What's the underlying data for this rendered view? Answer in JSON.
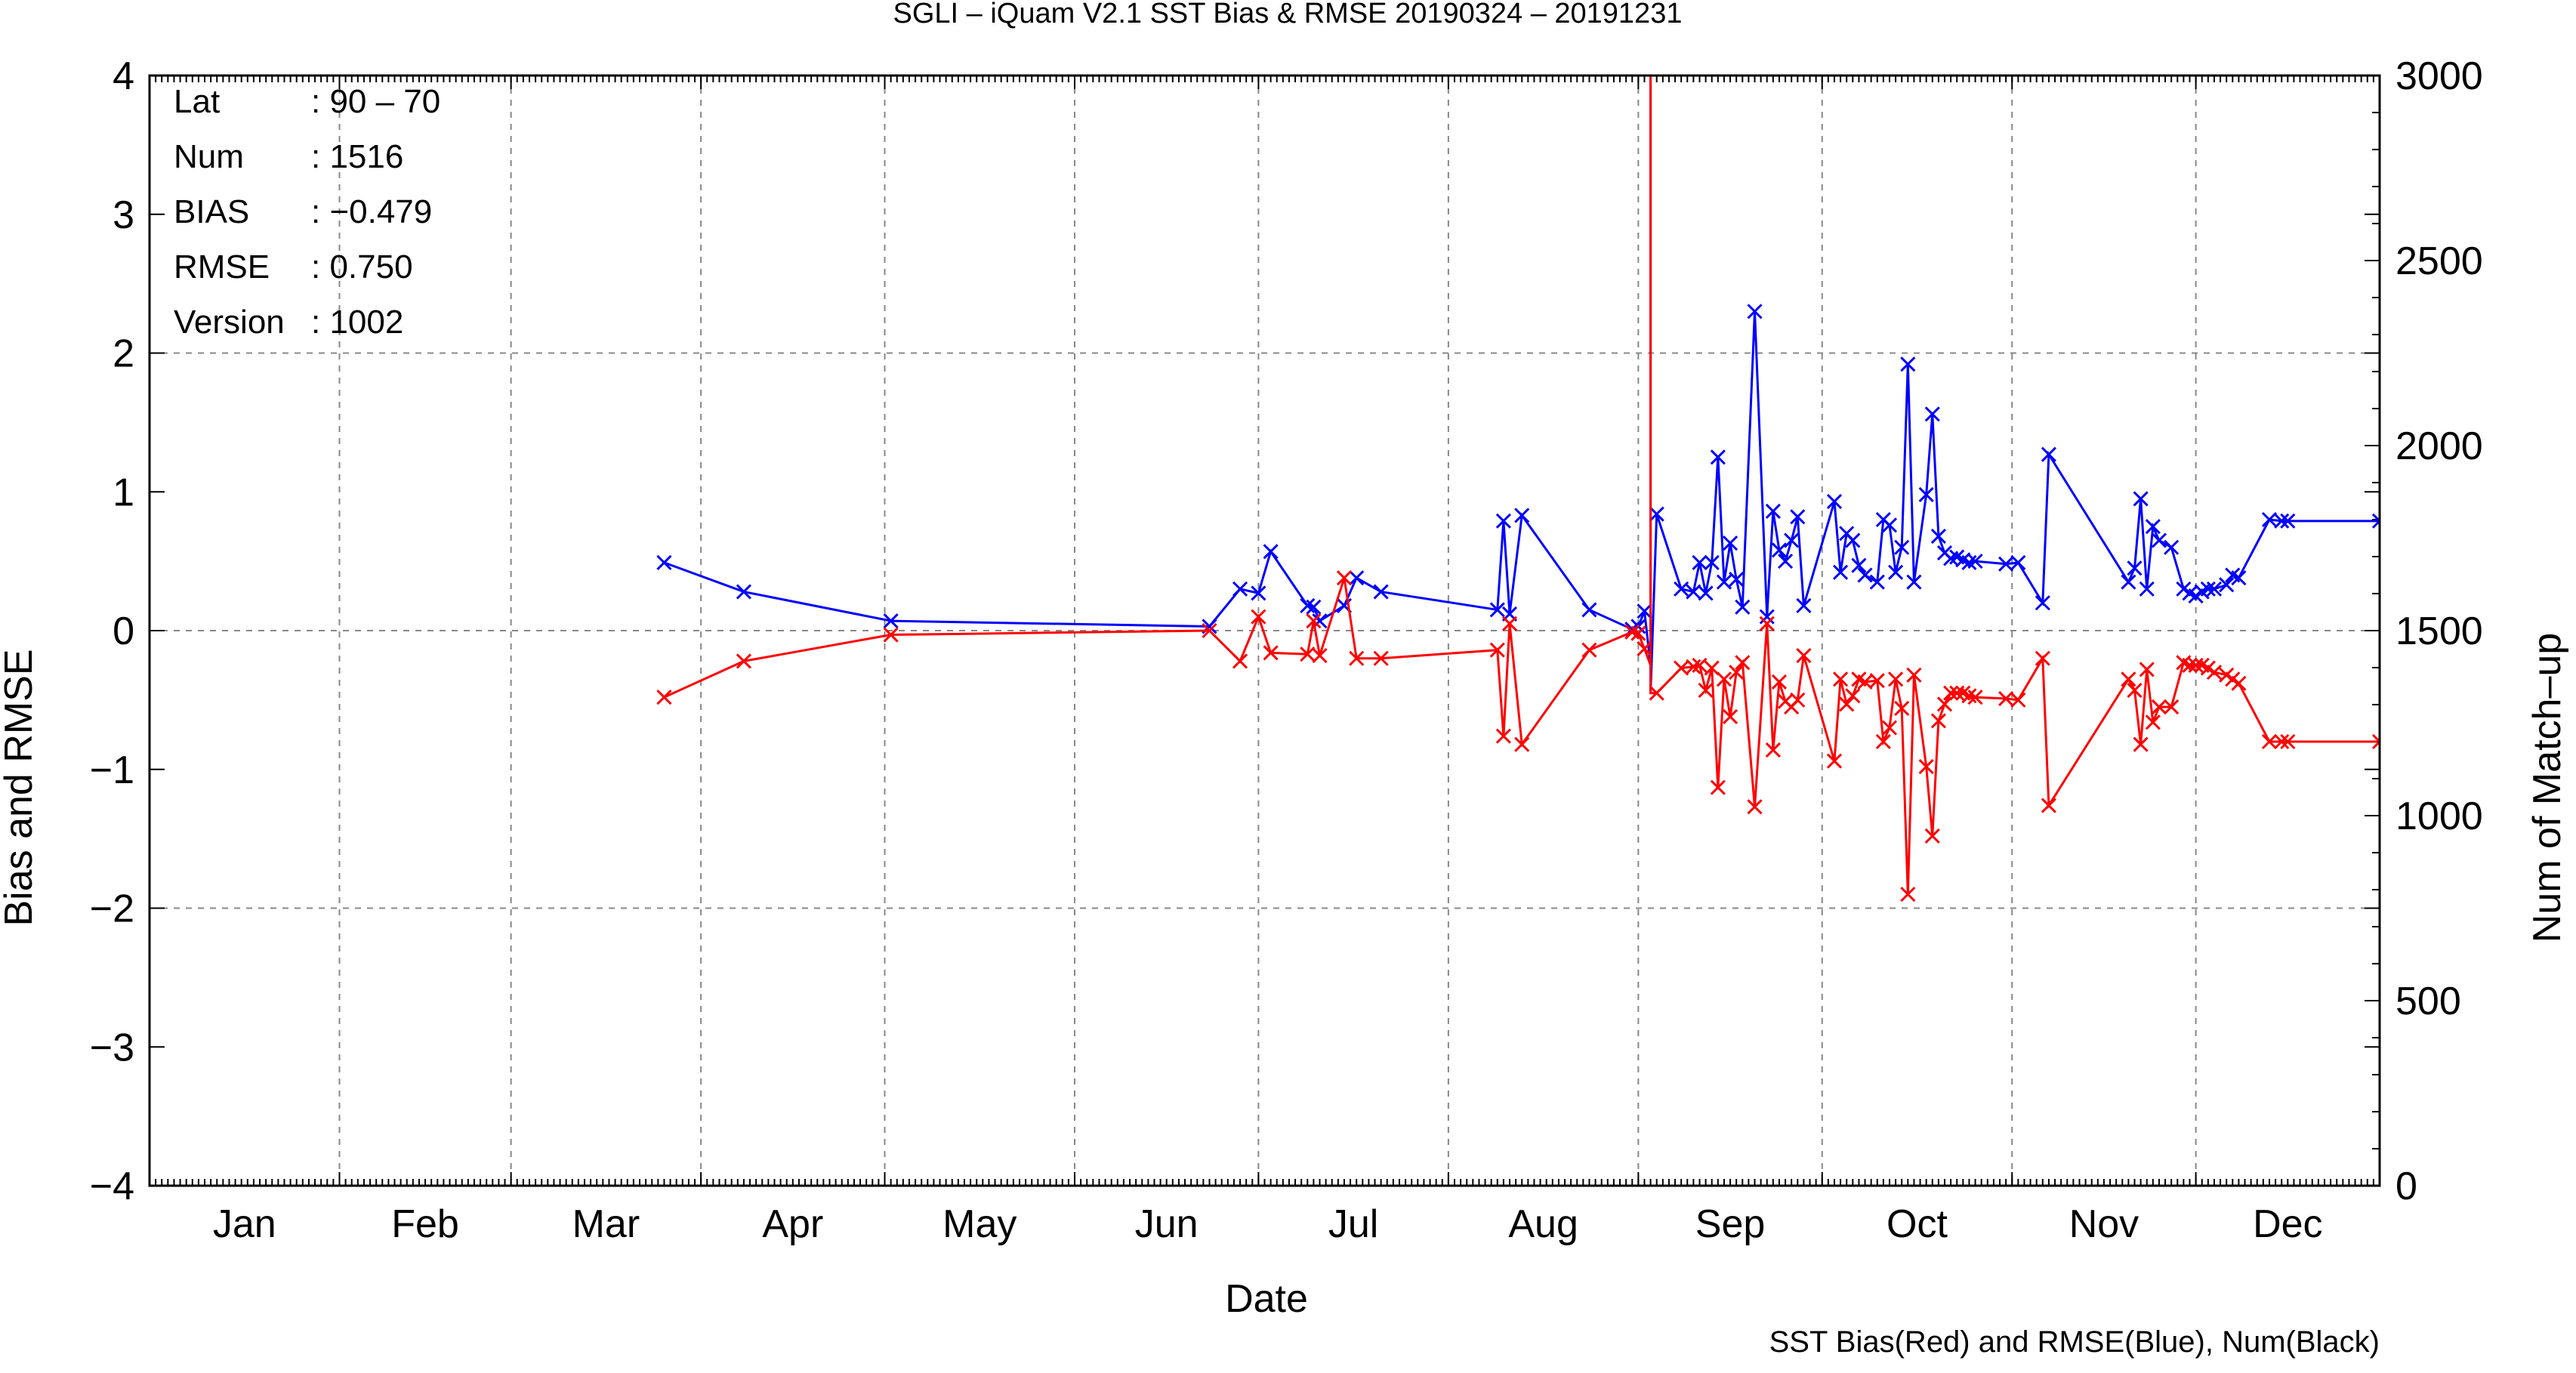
{
  "chart_data": {
    "type": "line",
    "title": "SGLI – iQuam V2.1 SST Bias & RMSE 20190324 – 20191231",
    "xlabel": "Date",
    "ylabel": "Bias and RMSE",
    "y2label": "Num of Match–up",
    "note": "SST Bias(Red) and RMSE(Blue), Num(Black)",
    "months": [
      "Jan",
      "Feb",
      "Mar",
      "Apr",
      "May",
      "Jun",
      "Jul",
      "Aug",
      "Sep",
      "Oct",
      "Nov",
      "Dec"
    ],
    "xlim": [
      "2019-01-01",
      "2019-12-31"
    ],
    "ylim": [
      -4,
      4
    ],
    "y2lim": [
      0,
      3000
    ],
    "yticks": [
      "4",
      "3",
      "2",
      "1",
      "0",
      "−1",
      "−2",
      "−3",
      "−4"
    ],
    "y2ticks": [
      "3000",
      "2500",
      "2000",
      "1500",
      "1000",
      "500",
      "0"
    ],
    "grid": true,
    "colors": {
      "bias": "#ff0000",
      "rmse": "#0000ff",
      "num": "#000000"
    },
    "stats": [
      {
        "key": "Lat",
        "value": ": 90 – 70"
      },
      {
        "key": "Num",
        "value": ": 1516"
      },
      {
        "key": "BIAS",
        "value": ": −0.479"
      },
      {
        "key": "RMSE",
        "value": ": 0.750"
      },
      {
        "key": "Version",
        "value": ": 1002"
      }
    ],
    "spike": {
      "date": "2019-09-03",
      "values": [
        -0.25,
        4.0,
        -0.45
      ]
    },
    "series": [
      {
        "key": "rmse",
        "dates": [
          "2019-03-26",
          "2019-04-08",
          "2019-05-02",
          "2019-06-23",
          "2019-06-28",
          "2019-07-01",
          "2019-07-03",
          "2019-07-09",
          "2019-07-10",
          "2019-07-11",
          "2019-07-15",
          "2019-07-17",
          "2019-07-21",
          "2019-08-09",
          "2019-08-10",
          "2019-08-11",
          "2019-08-13",
          "2019-08-24",
          "2019-08-31",
          "2019-09-01",
          "2019-09-02",
          "2019-09-04",
          "2019-09-08",
          "2019-09-10",
          "2019-09-11",
          "2019-09-12",
          "2019-09-13",
          "2019-09-14",
          "2019-09-15",
          "2019-09-16",
          "2019-09-17",
          "2019-09-18",
          "2019-09-20",
          "2019-09-22",
          "2019-09-23",
          "2019-09-24",
          "2019-09-25",
          "2019-09-26",
          "2019-09-27",
          "2019-09-28",
          "2019-10-03",
          "2019-10-04",
          "2019-10-05",
          "2019-10-06",
          "2019-10-07",
          "2019-10-08",
          "2019-10-10",
          "2019-10-11",
          "2019-10-12",
          "2019-10-13",
          "2019-10-14",
          "2019-10-15",
          "2019-10-16",
          "2019-10-18",
          "2019-10-19",
          "2019-10-20",
          "2019-10-21",
          "2019-10-22",
          "2019-10-23",
          "2019-10-24",
          "2019-10-25",
          "2019-10-26",
          "2019-10-31",
          "2019-11-02",
          "2019-11-06",
          "2019-11-07",
          "2019-11-20",
          "2019-11-21",
          "2019-11-22",
          "2019-11-23",
          "2019-11-24",
          "2019-11-25",
          "2019-11-27",
          "2019-11-29",
          "2019-11-30",
          "2019-12-01",
          "2019-12-02",
          "2019-12-03",
          "2019-12-04",
          "2019-12-06",
          "2019-12-07",
          "2019-12-08",
          "2019-12-13",
          "2019-12-15",
          "2019-12-16",
          "2019-12-31"
        ],
        "values": [
          0.49,
          0.28,
          0.07,
          0.03,
          0.3,
          0.27,
          0.57,
          0.18,
          0.17,
          0.07,
          0.18,
          0.38,
          0.28,
          0.15,
          0.79,
          0.12,
          0.83,
          0.15,
          0.01,
          0.03,
          0.14,
          0.84,
          0.3,
          0.28,
          0.49,
          0.27,
          0.49,
          1.25,
          0.35,
          0.63,
          0.37,
          0.17,
          2.3,
          0.1,
          0.86,
          0.58,
          0.5,
          0.65,
          0.82,
          0.18,
          0.93,
          0.42,
          0.7,
          0.65,
          0.47,
          0.4,
          0.35,
          0.8,
          0.76,
          0.42,
          0.6,
          1.92,
          0.35,
          0.98,
          1.56,
          0.68,
          0.56,
          0.52,
          0.53,
          0.51,
          0.49,
          0.5,
          0.48,
          0.49,
          0.2,
          1.27,
          0.35,
          0.45,
          0.95,
          0.3,
          0.75,
          0.65,
          0.6,
          0.3,
          0.27,
          0.25,
          0.28,
          0.3,
          0.3,
          0.33,
          0.4,
          0.38,
          0.8,
          0.79,
          0.79,
          0.79
        ]
      },
      {
        "key": "bias",
        "dates": [
          "2019-03-26",
          "2019-04-08",
          "2019-05-02",
          "2019-06-23",
          "2019-06-28",
          "2019-07-01",
          "2019-07-03",
          "2019-07-09",
          "2019-07-10",
          "2019-07-11",
          "2019-07-15",
          "2019-07-17",
          "2019-07-21",
          "2019-08-09",
          "2019-08-10",
          "2019-08-11",
          "2019-08-13",
          "2019-08-24",
          "2019-08-31",
          "2019-09-01",
          "2019-09-02",
          "2019-09-04",
          "2019-09-08",
          "2019-09-10",
          "2019-09-11",
          "2019-09-12",
          "2019-09-13",
          "2019-09-14",
          "2019-09-15",
          "2019-09-16",
          "2019-09-17",
          "2019-09-18",
          "2019-09-20",
          "2019-09-22",
          "2019-09-23",
          "2019-09-24",
          "2019-09-25",
          "2019-09-26",
          "2019-09-27",
          "2019-09-28",
          "2019-10-03",
          "2019-10-04",
          "2019-10-05",
          "2019-10-06",
          "2019-10-07",
          "2019-10-08",
          "2019-10-10",
          "2019-10-11",
          "2019-10-12",
          "2019-10-13",
          "2019-10-14",
          "2019-10-15",
          "2019-10-16",
          "2019-10-18",
          "2019-10-19",
          "2019-10-20",
          "2019-10-21",
          "2019-10-22",
          "2019-10-23",
          "2019-10-24",
          "2019-10-25",
          "2019-10-26",
          "2019-10-31",
          "2019-11-02",
          "2019-11-06",
          "2019-11-07",
          "2019-11-20",
          "2019-11-21",
          "2019-11-22",
          "2019-11-23",
          "2019-11-24",
          "2019-11-25",
          "2019-11-27",
          "2019-11-29",
          "2019-11-30",
          "2019-12-01",
          "2019-12-02",
          "2019-12-03",
          "2019-12-04",
          "2019-12-06",
          "2019-12-07",
          "2019-12-08",
          "2019-12-13",
          "2019-12-15",
          "2019-12-16",
          "2019-12-31"
        ],
        "values": [
          -0.48,
          -0.22,
          -0.03,
          0.0,
          -0.22,
          0.1,
          -0.16,
          -0.17,
          0.07,
          -0.18,
          0.38,
          -0.2,
          -0.2,
          -0.14,
          -0.76,
          0.05,
          -0.82,
          -0.14,
          -0.01,
          -0.02,
          -0.13,
          -0.45,
          -0.27,
          -0.26,
          -0.25,
          -0.43,
          -0.27,
          -1.13,
          -0.35,
          -0.62,
          -0.3,
          -0.23,
          -1.27,
          0.05,
          -0.86,
          -0.37,
          -0.51,
          -0.55,
          -0.5,
          -0.18,
          -0.94,
          -0.35,
          -0.53,
          -0.47,
          -0.35,
          -0.37,
          -0.36,
          -0.8,
          -0.7,
          -0.35,
          -0.56,
          -1.9,
          -0.32,
          -0.98,
          -1.48,
          -0.65,
          -0.53,
          -0.45,
          -0.45,
          -0.45,
          -0.47,
          -0.48,
          -0.49,
          -0.5,
          -0.2,
          -1.26,
          -0.35,
          -0.43,
          -0.82,
          -0.28,
          -0.66,
          -0.55,
          -0.55,
          -0.23,
          -0.25,
          -0.25,
          -0.25,
          -0.27,
          -0.3,
          -0.32,
          -0.35,
          -0.38,
          -0.8,
          -0.8,
          -0.8,
          -0.8
        ]
      }
    ]
  }
}
